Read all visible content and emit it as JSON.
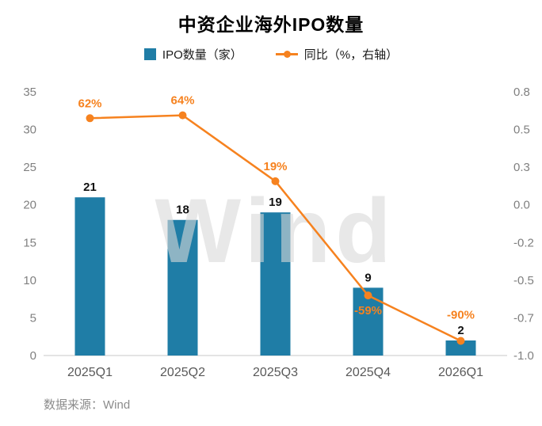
{
  "title": "中资企业海外IPO数量",
  "legend": {
    "bar_label": "IPO数量（家）",
    "line_label": "同比（%，右轴）"
  },
  "footer": {
    "source": "数据来源：Wind"
  },
  "watermark": "Wind",
  "colors": {
    "bar": "#1F7DA6",
    "line": "#F6821F",
    "pct_label": "#F6821F",
    "bar_value_label": "#111111",
    "axis_text": "#808080",
    "x_axis_text": "#595959",
    "axis_line": "#c9c9c9",
    "watermark": "#d9d9d9"
  },
  "chart_data": {
    "type": "bar",
    "title": "中资企业海外IPO数量",
    "categories": [
      "2025Q1",
      "2025Q2",
      "2025Q3",
      "2025Q4",
      "2026Q1"
    ],
    "series": [
      {
        "name": "IPO数量（家）",
        "type": "bar",
        "axis": "left",
        "values": [
          21,
          18,
          19,
          9,
          2
        ],
        "labels": [
          "21",
          "18",
          "19",
          "9",
          "2"
        ],
        "color": "#1F7DA6"
      },
      {
        "name": "同比（%，右轴）",
        "type": "line",
        "axis": "right",
        "values": [
          0.62,
          0.64,
          0.19,
          -0.59,
          -0.9
        ],
        "labels": [
          "62%",
          "64%",
          "19%",
          "-59%",
          "-90%"
        ],
        "label_dy": [
          -14,
          -14,
          -14,
          24,
          -28
        ],
        "color": "#F6821F"
      }
    ],
    "left_axis": {
      "min": 0,
      "max": 35,
      "tick_labels": [
        "35",
        "30",
        "25",
        "20",
        "15",
        "10",
        "5",
        "0"
      ]
    },
    "right_axis": {
      "min": -1.0,
      "max": 0.8,
      "tick_labels": [
        "0.8",
        "0.5",
        "0.3",
        "0.0",
        "-0.2",
        "-0.5",
        "-0.7",
        "-1.0"
      ]
    },
    "grid": false,
    "legend_position": "top"
  }
}
